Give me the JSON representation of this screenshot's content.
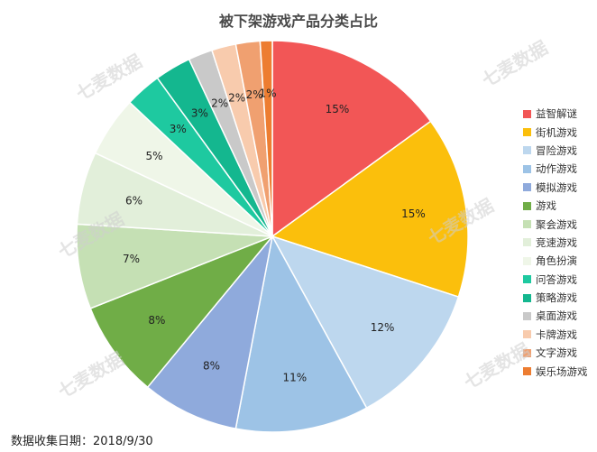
{
  "watermark_text": "七麦数据",
  "footnote": "数据收集日期：2018/9/30",
  "chart_data": {
    "type": "pie",
    "title": "被下架游戏产品分类占比",
    "legend_position": "right",
    "categories": [
      "益智解谜",
      "街机游戏",
      "冒险游戏",
      "动作游戏",
      "模拟游戏",
      "游戏",
      "聚会游戏",
      "竞速游戏",
      "角色扮演",
      "问答游戏",
      "策略游戏",
      "桌面游戏",
      "卡牌游戏",
      "文字游戏",
      "娱乐场游戏"
    ],
    "values": [
      15,
      15,
      12,
      11,
      8,
      8,
      7,
      6,
      5,
      3,
      3,
      2,
      2,
      2,
      1
    ],
    "labels": [
      "15%",
      "15%",
      "12%",
      "11%",
      "8%",
      "8%",
      "7%",
      "6%",
      "5%",
      "3%",
      "3%",
      "2%",
      "2%",
      "2%",
      "1%"
    ],
    "colors": [
      "#f25656",
      "#fbbf0c",
      "#bdd7ee",
      "#9dc3e6",
      "#8faadc",
      "#70ad47",
      "#c5e0b4",
      "#e2efda",
      "#eff6e8",
      "#1ec9a0",
      "#14b78f",
      "#c9c9c9",
      "#f8cbad",
      "#f0a070",
      "#ed7d31"
    ]
  }
}
